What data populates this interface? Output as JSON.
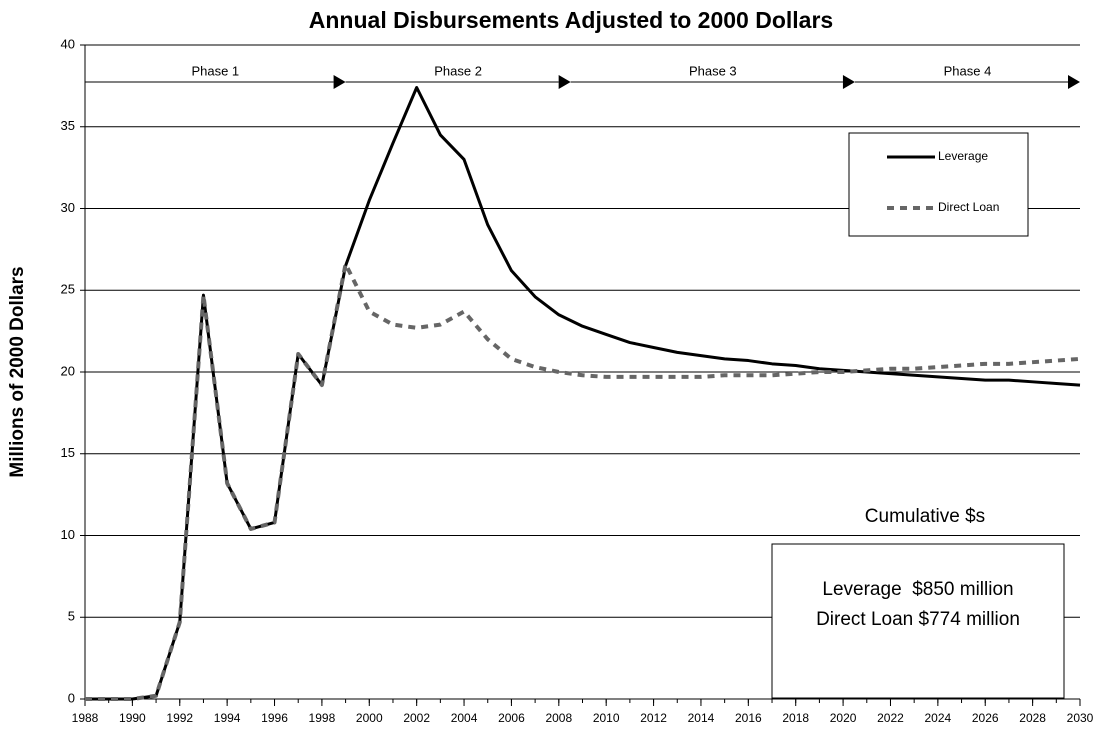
{
  "chart_data": {
    "type": "line",
    "title": "Annual Disbursements Adjusted to 2000 Dollars",
    "y_label": "Millions of 2000 Dollars",
    "x": [
      1988,
      1989,
      1990,
      1991,
      1992,
      1993,
      1994,
      1995,
      1996,
      1997,
      1998,
      1999,
      2000,
      2001,
      2002,
      2003,
      2004,
      2005,
      2006,
      2007,
      2008,
      2009,
      2010,
      2011,
      2012,
      2013,
      2014,
      2015,
      2016,
      2017,
      2018,
      2019,
      2020,
      2021,
      2022,
      2023,
      2024,
      2025,
      2026,
      2027,
      2028,
      2029,
      2030
    ],
    "series": [
      {
        "name": "Leverage",
        "color": "#000000",
        "values": [
          0,
          0,
          0,
          0.2,
          4.7,
          24.7,
          13.2,
          10.4,
          10.8,
          21.1,
          19.2,
          26.5,
          30.5,
          34.0,
          37.4,
          34.5,
          33.0,
          29.0,
          26.2,
          24.6,
          23.5,
          22.8,
          22.3,
          21.8,
          21.5,
          21.2,
          21.0,
          20.8,
          20.7,
          20.5,
          20.4,
          20.2,
          20.1,
          20.0,
          19.9,
          19.8,
          19.7,
          19.6,
          19.5,
          19.5,
          19.4,
          19.3,
          19.2
        ]
      },
      {
        "name": "Direct Loan",
        "color": "#666666",
        "values": [
          0,
          0,
          0,
          0.2,
          4.7,
          24.7,
          13.2,
          10.4,
          10.8,
          21.1,
          19.2,
          26.6,
          23.7,
          22.9,
          22.7,
          22.9,
          23.7,
          22.0,
          20.8,
          20.3,
          20.0,
          19.8,
          19.7,
          19.7,
          19.7,
          19.7,
          19.7,
          19.8,
          19.8,
          19.8,
          19.9,
          20.0,
          20.0,
          20.1,
          20.2,
          20.2,
          20.3,
          20.4,
          20.5,
          20.5,
          20.6,
          20.7,
          20.8
        ]
      }
    ],
    "xlim": [
      1988,
      2030
    ],
    "xticks": [
      1988,
      1990,
      1992,
      1994,
      1996,
      1998,
      2000,
      2002,
      2004,
      2006,
      2008,
      2010,
      2012,
      2014,
      2016,
      2018,
      2020,
      2022,
      2024,
      2026,
      2028,
      2030
    ],
    "ylim": [
      0,
      40
    ],
    "yticks": [
      0,
      5,
      10,
      15,
      20,
      25,
      30,
      35,
      40
    ],
    "grid": true,
    "legend": "upper right",
    "phases": [
      {
        "label": "Phase 1",
        "start": 1988,
        "end": 1999
      },
      {
        "label": "Phase 2",
        "start": 1999,
        "end": 2008.5
      },
      {
        "label": "Phase 3",
        "start": 2008.5,
        "end": 2020.5
      },
      {
        "label": "Phase 4",
        "start": 2020.5,
        "end": 2030
      }
    ],
    "annotations": [
      "Cumulative $s",
      "Leverage  $850 million",
      "Direct Loan $774 million"
    ]
  }
}
